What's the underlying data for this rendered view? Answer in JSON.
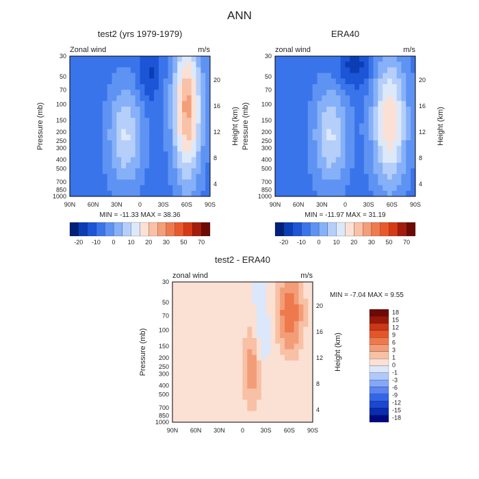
{
  "page": {
    "title": "ANN"
  },
  "colors": {
    "top_scale": [
      "#00207a",
      "#0b3db4",
      "#1c55d6",
      "#3a74ea",
      "#5e93f3",
      "#86b0f8",
      "#b5cffa",
      "#dce9fb",
      "#fbe1d5",
      "#f9c1a6",
      "#f59e7a",
      "#f07a50",
      "#e85a2c",
      "#d53a17",
      "#a51c0c",
      "#6e0a05"
    ],
    "diff_scale": [
      "#000a80",
      "#0a2cb0",
      "#1b47d2",
      "#3365e8",
      "#5a85f2",
      "#84a8f7",
      "#b1c9fa",
      "#dbe7fb",
      "#fbe0d4",
      "#f8c0a4",
      "#f39d78",
      "#ee794d",
      "#e4562a",
      "#cc3716",
      "#9a1808",
      "#6e0a05"
    ]
  },
  "chart_data": [
    {
      "type": "heatmap",
      "title": "test2 (yrs 1979-1979)",
      "corner_left": "Zonal wind",
      "corner_right": "m/s",
      "xlabel": "",
      "ylabel": "Pressure (mb)",
      "y2label": "Height (km)",
      "x_ticks": [
        "90N",
        "60N",
        "30N",
        "0",
        "30S",
        "60S",
        "90S"
      ],
      "y_ticks": [
        "30",
        "50",
        "70",
        "100",
        "150",
        "200",
        "250",
        "300",
        "400",
        "500",
        "700",
        "850",
        "1000"
      ],
      "y2_ticks": [
        "20",
        "16",
        "12",
        "8",
        "4"
      ],
      "stats": "MIN = -11.33   MAX = 38.36",
      "min": -11.33,
      "max": 38.36,
      "colorbar_labels": [
        "-20",
        "-10",
        "0",
        "10",
        "20",
        "30",
        "50",
        "70"
      ],
      "features": [
        {
          "x": 0.38,
          "y": 0.55,
          "rx": 0.12,
          "ry": 0.35,
          "v": 20
        },
        {
          "x": 0.82,
          "y": 0.35,
          "rx": 0.1,
          "ry": 0.5,
          "v": 38
        },
        {
          "x": 0.55,
          "y": 0.1,
          "rx": 0.07,
          "ry": 0.2,
          "v": -10
        }
      ]
    },
    {
      "type": "heatmap",
      "title": "ERA40",
      "corner_left": "zonal wind",
      "corner_right": "m/s",
      "xlabel": "",
      "ylabel": "Pressure (mb)",
      "y2label": "Height (km)",
      "x_ticks": [
        "90N",
        "60N",
        "30N",
        "0",
        "30S",
        "60S",
        "90S"
      ],
      "y_ticks": [
        "30",
        "50",
        "70",
        "100",
        "150",
        "200",
        "250",
        "300",
        "400",
        "500",
        "700",
        "850",
        "1000"
      ],
      "y2_ticks": [
        "20",
        "16",
        "12",
        "8",
        "4"
      ],
      "stats": "MIN = -11.97   MAX = 31.19",
      "min": -11.97,
      "max": 31.19,
      "colorbar_labels": [
        "-20",
        "-10",
        "0",
        "10",
        "20",
        "30",
        "50",
        "70"
      ],
      "features": [
        {
          "x": 0.38,
          "y": 0.55,
          "rx": 0.12,
          "ry": 0.35,
          "v": 20
        },
        {
          "x": 0.8,
          "y": 0.45,
          "rx": 0.12,
          "ry": 0.45,
          "v": 30
        },
        {
          "x": 0.55,
          "y": 0.05,
          "rx": 0.12,
          "ry": 0.15,
          "v": -12
        }
      ]
    },
    {
      "type": "heatmap",
      "title": "test2 - ERA40",
      "corner_left": "zonal wind",
      "corner_right": "m/s",
      "xlabel": "",
      "ylabel": "Pressure (mb)",
      "y2label": "Height (km)",
      "x_ticks": [
        "90N",
        "60N",
        "30N",
        "0",
        "30S",
        "60S",
        "90S"
      ],
      "y_ticks": [
        "30",
        "50",
        "70",
        "100",
        "150",
        "200",
        "250",
        "300",
        "400",
        "500",
        "700",
        "850",
        "1000"
      ],
      "y2_ticks": [
        "20",
        "16",
        "12",
        "8",
        "4"
      ],
      "stats": "MIN =   -7.04   MAX =    9.55",
      "min": -7.04,
      "max": 9.55,
      "colorbar_labels": [
        "18",
        "15",
        "12",
        "9",
        "6",
        "3",
        "1",
        "0",
        "-1",
        "-3",
        "-6",
        "-9",
        "-12",
        "-15",
        "-18"
      ],
      "features": [
        {
          "x": 0.82,
          "y": 0.2,
          "rx": 0.1,
          "ry": 0.3,
          "v": 9
        },
        {
          "x": 0.55,
          "y": 0.6,
          "rx": 0.08,
          "ry": 0.3,
          "v": 6
        },
        {
          "x": 0.62,
          "y": 0.35,
          "rx": 0.05,
          "ry": 0.3,
          "v": -3
        },
        {
          "x": 0.22,
          "y": 0.4,
          "rx": 0.06,
          "ry": 0.45,
          "v": 2
        }
      ]
    }
  ]
}
